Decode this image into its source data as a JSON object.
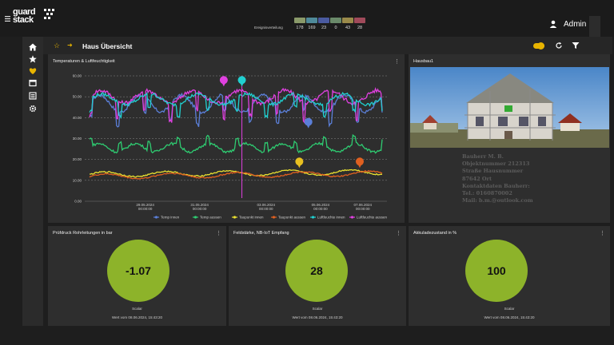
{
  "header": {
    "brand": "guard stack",
    "event_label": "Ereignisverteilung",
    "event_counts": [
      {
        "count": "178",
        "color": "#8a9a6a"
      },
      {
        "count": "169",
        "color": "#4f8a9a"
      },
      {
        "count": "23",
        "color": "#4a5aa0"
      },
      {
        "count": "0",
        "color": "#6a8a6a"
      },
      {
        "count": "43",
        "color": "#9a8a4a"
      },
      {
        "count": "28",
        "color": "#a04a5a"
      }
    ],
    "user": "Admin"
  },
  "toolbar": {
    "title": "Haus Übersicht",
    "accent": "#e8b400"
  },
  "panels": {
    "chart_title": "Temperaturen & Luftfeuchtigkeit",
    "photo_title": "Hausbau1",
    "pressure_title": "Prüfdruck Rohrleitungen in bar",
    "signal_title": "Feldstärke, NB-IoT Empfang",
    "battery_title": "Akkuladezustand in %"
  },
  "gauges": [
    {
      "value": "-1.07",
      "unit": "Scalar",
      "footer": "Wert vom 08.06.2024, 15:43:20"
    },
    {
      "value": "28",
      "unit": "Scalar",
      "footer": "Wert vom 08.06.2024, 15:43:20"
    },
    {
      "value": "100",
      "unit": "Scalar",
      "footer": "Wert vom 08.06.2024, 15:43:20"
    }
  ],
  "contact": {
    "lines": [
      "Bauherr M. B.",
      "Objektnummer 212313",
      "Straße Hausnummer",
      "87642 Ort",
      "Kontaktdaten Bauherr:",
      "Tel.: 0160870002",
      "Mail: b.m.@outlook.com"
    ]
  },
  "chart_data": {
    "type": "line",
    "title": "Temperaturen & Luftfeuchtigkeit",
    "ylim": [
      0,
      60
    ],
    "yticks": [
      "0.00",
      "10.00",
      "20.00",
      "30.00",
      "40.00",
      "50.00",
      "60.00"
    ],
    "xticks": [
      {
        "date": "29.05.2024",
        "time": "00:00:00"
      },
      {
        "date": "31.05.2024",
        "time": "00:00:00"
      },
      {
        "date": "03.06.2024",
        "time": "00:00:00"
      },
      {
        "date": "05.06.2024",
        "time": "00:00:00"
      },
      {
        "date": "07.06.2024",
        "time": "00:00:00"
      }
    ],
    "series": [
      {
        "name": "Temp innen",
        "color": "#5b7fd8"
      },
      {
        "name": "Temp aussen",
        "color": "#2ecc71"
      },
      {
        "name": "Taupunkt innen",
        "color": "#e8e030"
      },
      {
        "name": "Taupunkt aussen",
        "color": "#e06020"
      },
      {
        "name": "Luftfeuchte innen",
        "color": "#20d0d0"
      },
      {
        "name": "Luftfeuchte aussen",
        "color": "#e040e0"
      }
    ],
    "markers": [
      {
        "label": "",
        "color": "#e040e0",
        "x": 0.46,
        "y": 58
      },
      {
        "label": "",
        "color": "#20d0d0",
        "x": 0.52,
        "y": 58
      },
      {
        "label": "",
        "color": "#5b7fd8",
        "x": 0.74,
        "y": 38
      },
      {
        "label": "",
        "color": "#e8c020",
        "x": 0.71,
        "y": 19
      },
      {
        "label": "",
        "color": "#e06020",
        "x": 0.91,
        "y": 19
      }
    ]
  }
}
